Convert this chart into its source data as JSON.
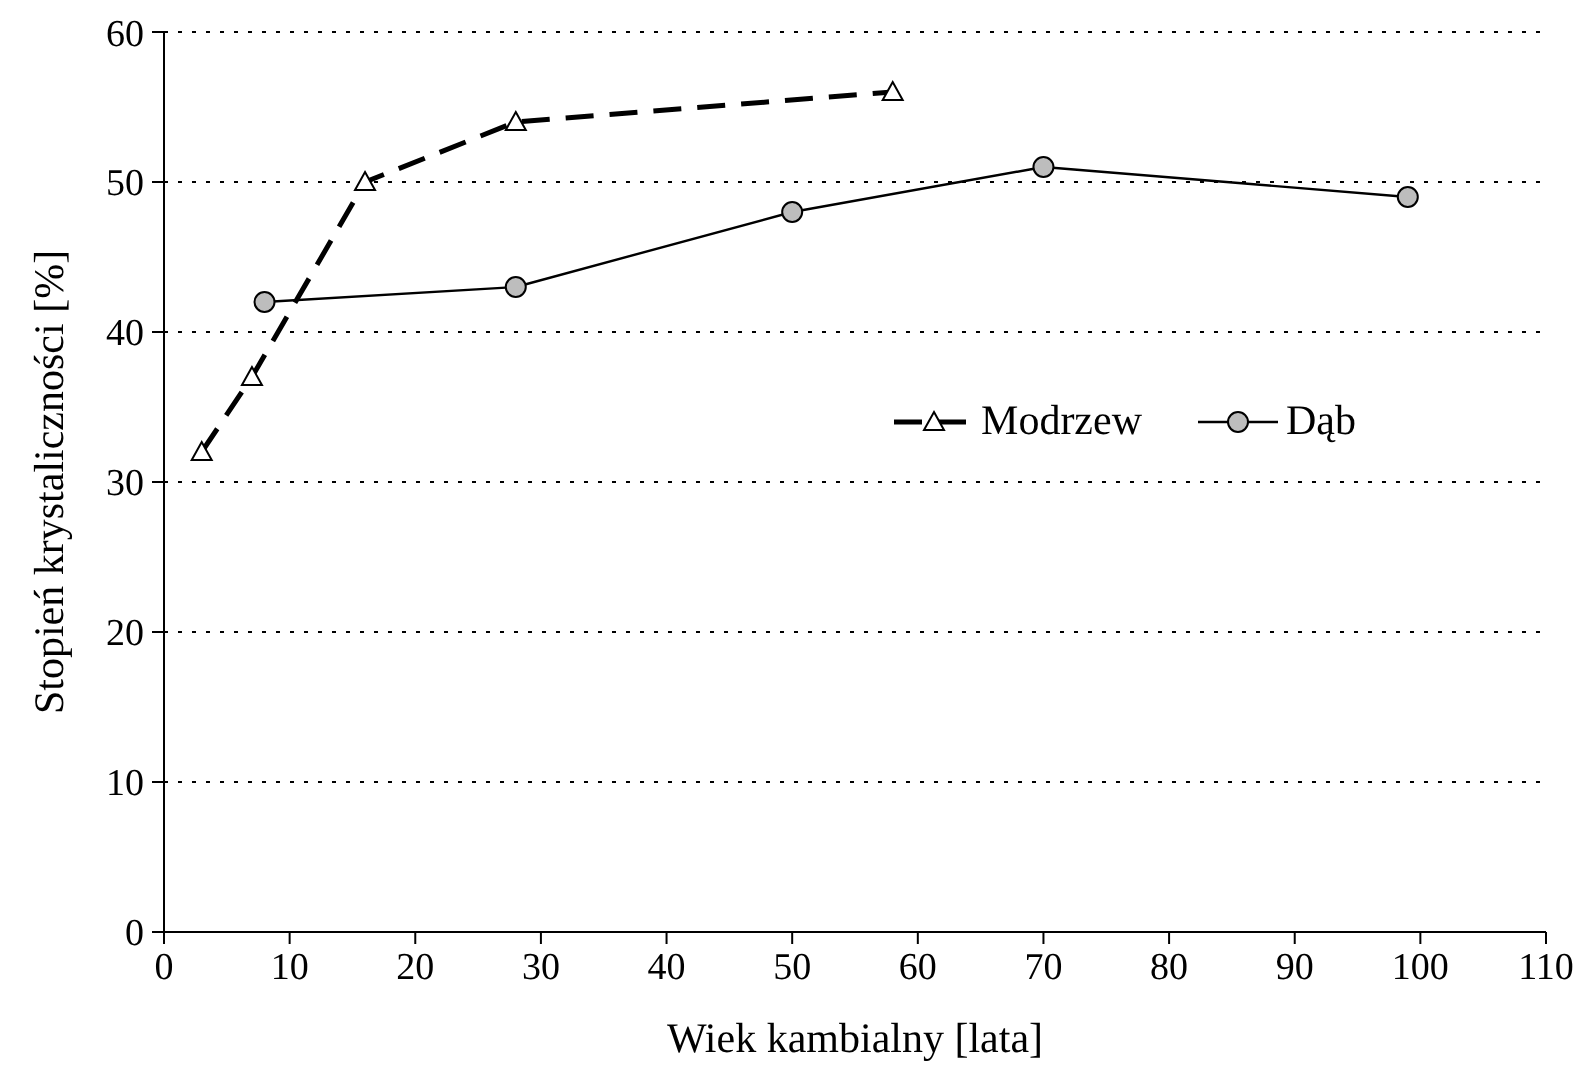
{
  "chart_data": {
    "type": "line",
    "xlabel": "Wiek kambialny [lata]",
    "ylabel": "Stopień krystaliczności [%]",
    "xlim": [
      0,
      110
    ],
    "xticks": [
      0,
      10,
      20,
      30,
      40,
      50,
      60,
      70,
      80,
      90,
      100,
      110
    ],
    "ylim": [
      0,
      60
    ],
    "yticks": [
      0,
      10,
      20,
      30,
      40,
      50,
      60
    ],
    "grid": "y",
    "legend": "right",
    "series": [
      {
        "name": "Modrzew",
        "color": "#000000",
        "x": [
          3,
          7,
          16,
          28,
          58
        ],
        "values": [
          32,
          37,
          50,
          54,
          56
        ],
        "marker": "triangle",
        "line_style": "dashed"
      },
      {
        "name": "Dąb",
        "color": "#000000",
        "x": [
          8,
          28,
          50,
          70,
          99
        ],
        "values": [
          42,
          43,
          48,
          51,
          49
        ],
        "marker": "circle",
        "line_style": "solid"
      }
    ]
  }
}
